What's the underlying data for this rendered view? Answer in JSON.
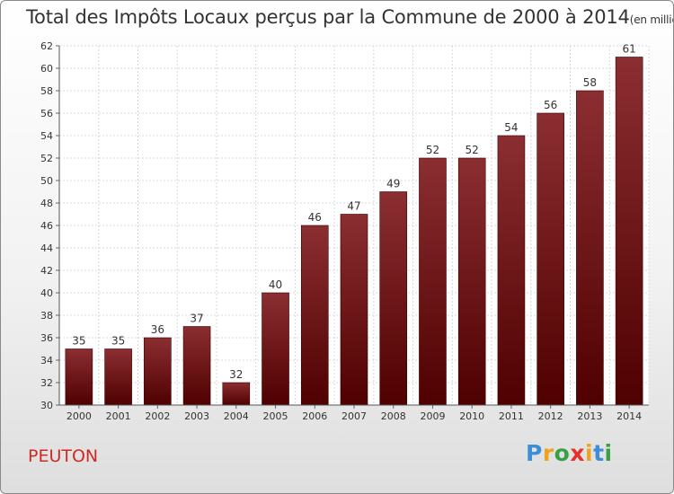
{
  "chart_data": {
    "type": "bar",
    "title": "Total des Impôts Locaux perçus par la Commune de 2000 à 2014",
    "title_unit": "(en milliers d'€)",
    "categories": [
      "2000",
      "2001",
      "2002",
      "2003",
      "2004",
      "2005",
      "2006",
      "2007",
      "2008",
      "2009",
      "2010",
      "2011",
      "2012",
      "2013",
      "2014"
    ],
    "values": [
      35,
      35,
      36,
      37,
      32,
      40,
      46,
      47,
      49,
      52,
      52,
      54,
      56,
      58,
      61
    ],
    "ylim": [
      30,
      62
    ],
    "yticks": [
      30,
      32,
      34,
      36,
      38,
      40,
      42,
      44,
      46,
      48,
      50,
      52,
      54,
      56,
      58,
      60,
      62
    ],
    "xlabel": "",
    "ylabel": "",
    "grid": true,
    "bar_color_top": "#8b2e32",
    "bar_color_bottom": "#4f0000"
  },
  "commune": "PEUTON",
  "logo": {
    "letters": [
      "P",
      "r",
      "o",
      "x",
      "i",
      "t",
      "i"
    ],
    "colors": [
      "#3c8fd6",
      "#f0a21e",
      "#3aa046",
      "#e8312a",
      "#f0a21e",
      "#3c8fd6",
      "#3aa046"
    ]
  }
}
